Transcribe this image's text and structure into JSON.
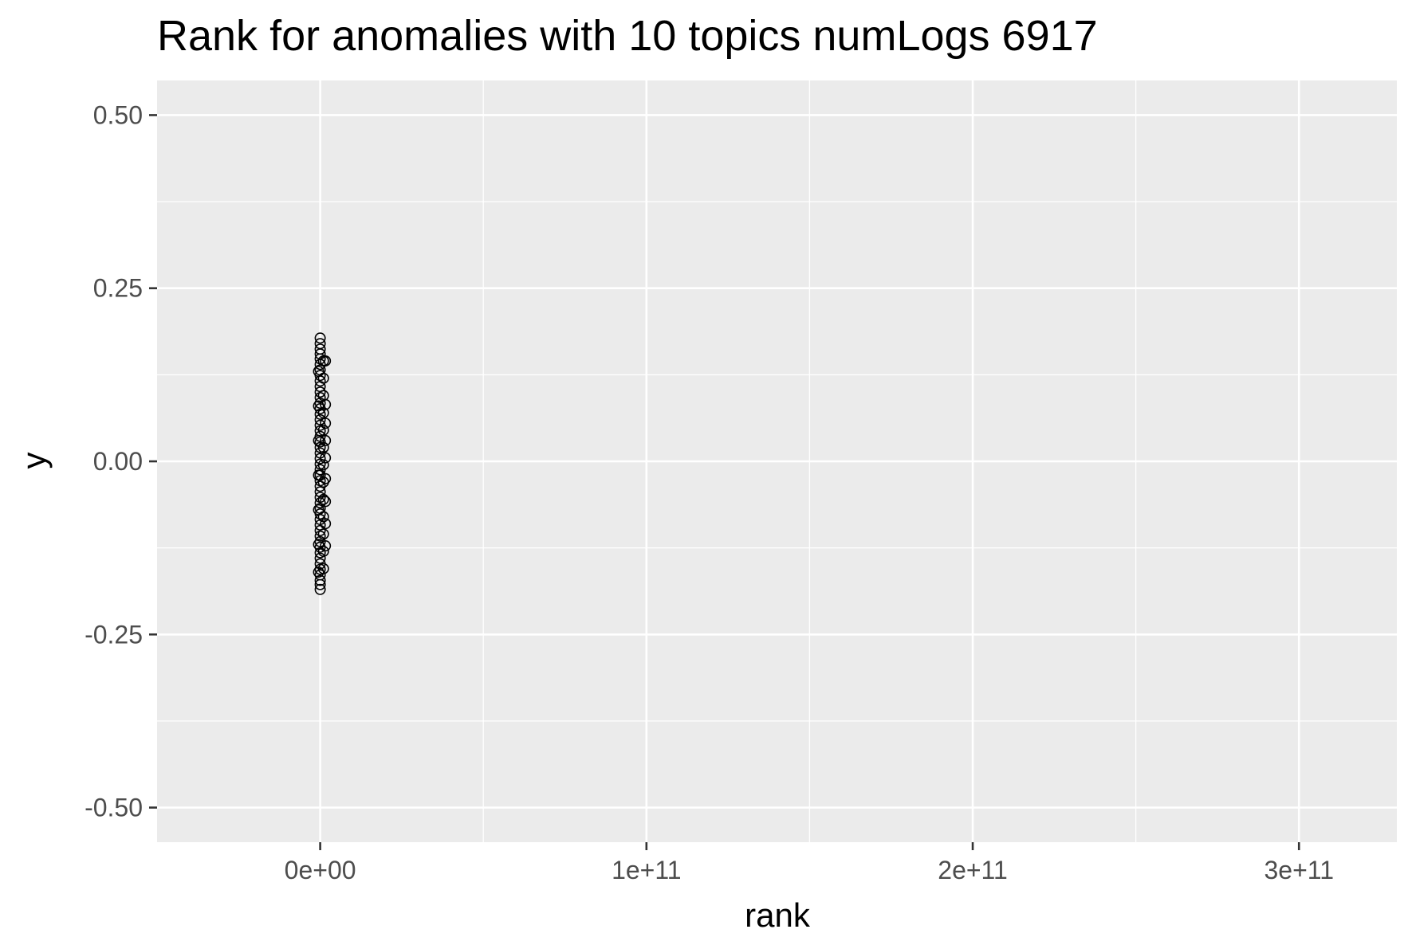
{
  "chart_data": {
    "type": "scatter",
    "title": "Rank for anomalies with 10 topics numLogs 6917",
    "xlabel": "rank",
    "ylabel": "y",
    "xlim": [
      -50000000000,
      330000000000
    ],
    "ylim": [
      -0.55,
      0.55
    ],
    "x_ticks": [
      0,
      100000000000,
      200000000000,
      300000000000
    ],
    "x_tick_labels": [
      "0e+00",
      "1e+11",
      "2e+11",
      "3e+11"
    ],
    "x_minor_ticks": [
      50000000000,
      150000000000,
      250000000000
    ],
    "y_ticks": [
      -0.5,
      -0.25,
      0,
      0.25,
      0.5
    ],
    "y_tick_labels": [
      "-0.50",
      "-0.25",
      "0.00",
      "0.25",
      "0.50"
    ],
    "y_minor_ticks": [
      -0.375,
      -0.125,
      0.125,
      0.375
    ],
    "grid": true,
    "marker": "open-circle",
    "colors": {
      "panel": "#ebebeb",
      "grid": "#ffffff",
      "points": "#000000",
      "tick_labels": "#4d4d4d"
    },
    "points": [
      {
        "x": 0,
        "y": 0.178
      },
      {
        "x": 0,
        "y": 0.17
      },
      {
        "x": 0,
        "y": 0.162
      },
      {
        "x": 0,
        "y": 0.155
      },
      {
        "x": 0,
        "y": 0.148
      },
      {
        "x": 0,
        "y": 0.14
      },
      {
        "x": 0,
        "y": 0.132
      },
      {
        "x": 0,
        "y": 0.124
      },
      {
        "x": 0,
        "y": 0.116
      },
      {
        "x": 0,
        "y": 0.108
      },
      {
        "x": 0,
        "y": 0.1
      },
      {
        "x": 0,
        "y": 0.092
      },
      {
        "x": 0,
        "y": 0.084
      },
      {
        "x": 0,
        "y": 0.076
      },
      {
        "x": 0,
        "y": 0.068
      },
      {
        "x": 0,
        "y": 0.06
      },
      {
        "x": 0,
        "y": 0.052
      },
      {
        "x": 0,
        "y": 0.044
      },
      {
        "x": 0,
        "y": 0.036
      },
      {
        "x": 0,
        "y": 0.028
      },
      {
        "x": 0,
        "y": 0.02
      },
      {
        "x": 0,
        "y": 0.012
      },
      {
        "x": 0,
        "y": 0.004
      },
      {
        "x": 0,
        "y": -0.004
      },
      {
        "x": 0,
        "y": -0.012
      },
      {
        "x": 0,
        "y": -0.02
      },
      {
        "x": 0,
        "y": -0.028
      },
      {
        "x": 0,
        "y": -0.036
      },
      {
        "x": 0,
        "y": -0.044
      },
      {
        "x": 0,
        "y": -0.052
      },
      {
        "x": 0,
        "y": -0.06
      },
      {
        "x": 0,
        "y": -0.068
      },
      {
        "x": 0,
        "y": -0.076
      },
      {
        "x": 0,
        "y": -0.084
      },
      {
        "x": 0,
        "y": -0.092
      },
      {
        "x": 0,
        "y": -0.1
      },
      {
        "x": 0,
        "y": -0.108
      },
      {
        "x": 0,
        "y": -0.116
      },
      {
        "x": 0,
        "y": -0.124
      },
      {
        "x": 0,
        "y": -0.132
      },
      {
        "x": 0,
        "y": -0.14
      },
      {
        "x": 0,
        "y": -0.148
      },
      {
        "x": 0,
        "y": -0.156
      },
      {
        "x": 0,
        "y": -0.164
      },
      {
        "x": 0,
        "y": -0.172
      },
      {
        "x": 0,
        "y": -0.178
      },
      {
        "x": 0,
        "y": -0.185
      },
      {
        "x": 1000000000,
        "y": 0.145
      },
      {
        "x": 1000000000,
        "y": 0.12
      },
      {
        "x": 1000000000,
        "y": 0.095
      },
      {
        "x": 1000000000,
        "y": 0.07
      },
      {
        "x": 1000000000,
        "y": 0.045
      },
      {
        "x": 1000000000,
        "y": 0.02
      },
      {
        "x": 1000000000,
        "y": -0.005
      },
      {
        "x": 1000000000,
        "y": -0.03
      },
      {
        "x": 1000000000,
        "y": -0.055
      },
      {
        "x": 1000000000,
        "y": -0.08
      },
      {
        "x": 1000000000,
        "y": -0.105
      },
      {
        "x": 1000000000,
        "y": -0.13
      },
      {
        "x": 1000000000,
        "y": -0.155
      },
      {
        "x": 1600000000,
        "y": 0.145
      },
      {
        "x": 1600000000,
        "y": 0.082
      },
      {
        "x": 1600000000,
        "y": 0.055
      },
      {
        "x": 1600000000,
        "y": 0.03
      },
      {
        "x": 1600000000,
        "y": 0.005
      },
      {
        "x": 1600000000,
        "y": -0.025
      },
      {
        "x": 1600000000,
        "y": -0.058
      },
      {
        "x": 1600000000,
        "y": -0.09
      },
      {
        "x": 1600000000,
        "y": -0.122
      },
      {
        "x": -500000000,
        "y": 0.13
      },
      {
        "x": -500000000,
        "y": 0.08
      },
      {
        "x": -500000000,
        "y": 0.03
      },
      {
        "x": -500000000,
        "y": -0.02
      },
      {
        "x": -500000000,
        "y": -0.07
      },
      {
        "x": -500000000,
        "y": -0.12
      },
      {
        "x": -500000000,
        "y": -0.16
      }
    ]
  }
}
